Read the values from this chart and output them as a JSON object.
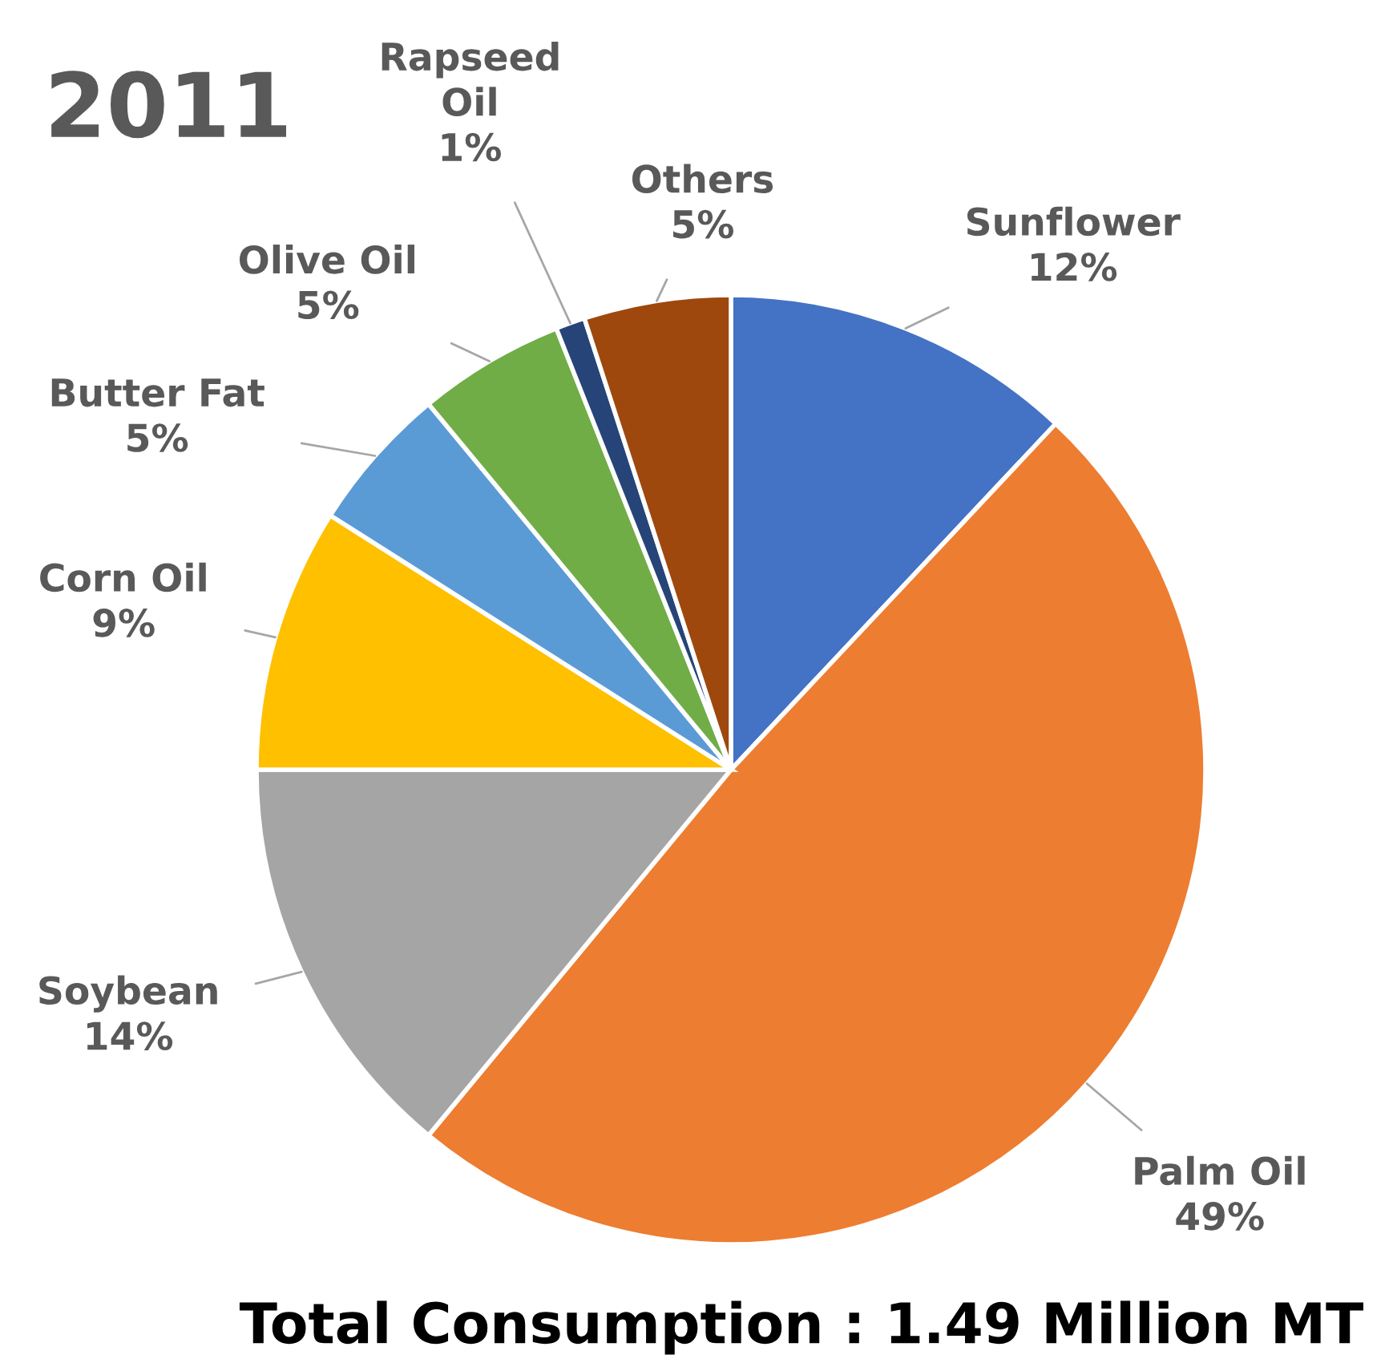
{
  "chart_data": {
    "type": "pie",
    "title": "2011",
    "categories": [
      "Sunflower",
      "Palm Oil",
      "Soybean",
      "Corn Oil",
      "Butter Fat",
      "Olive Oil",
      "Rapseed Oil",
      "Others"
    ],
    "values": [
      12,
      49,
      14,
      9,
      5,
      5,
      1,
      5
    ],
    "value_labels": [
      "12%",
      "49%",
      "14%",
      "9%",
      "5%",
      "5%",
      "1%",
      "5%"
    ],
    "colors": [
      "#4472c4",
      "#ed7d31",
      "#a5a5a5",
      "#ffc000",
      "#5b9bd5",
      "#70ad47",
      "#264478",
      "#9e480e"
    ],
    "annotations": [
      "Total Consumption : 1.49 Million MT"
    ]
  }
}
